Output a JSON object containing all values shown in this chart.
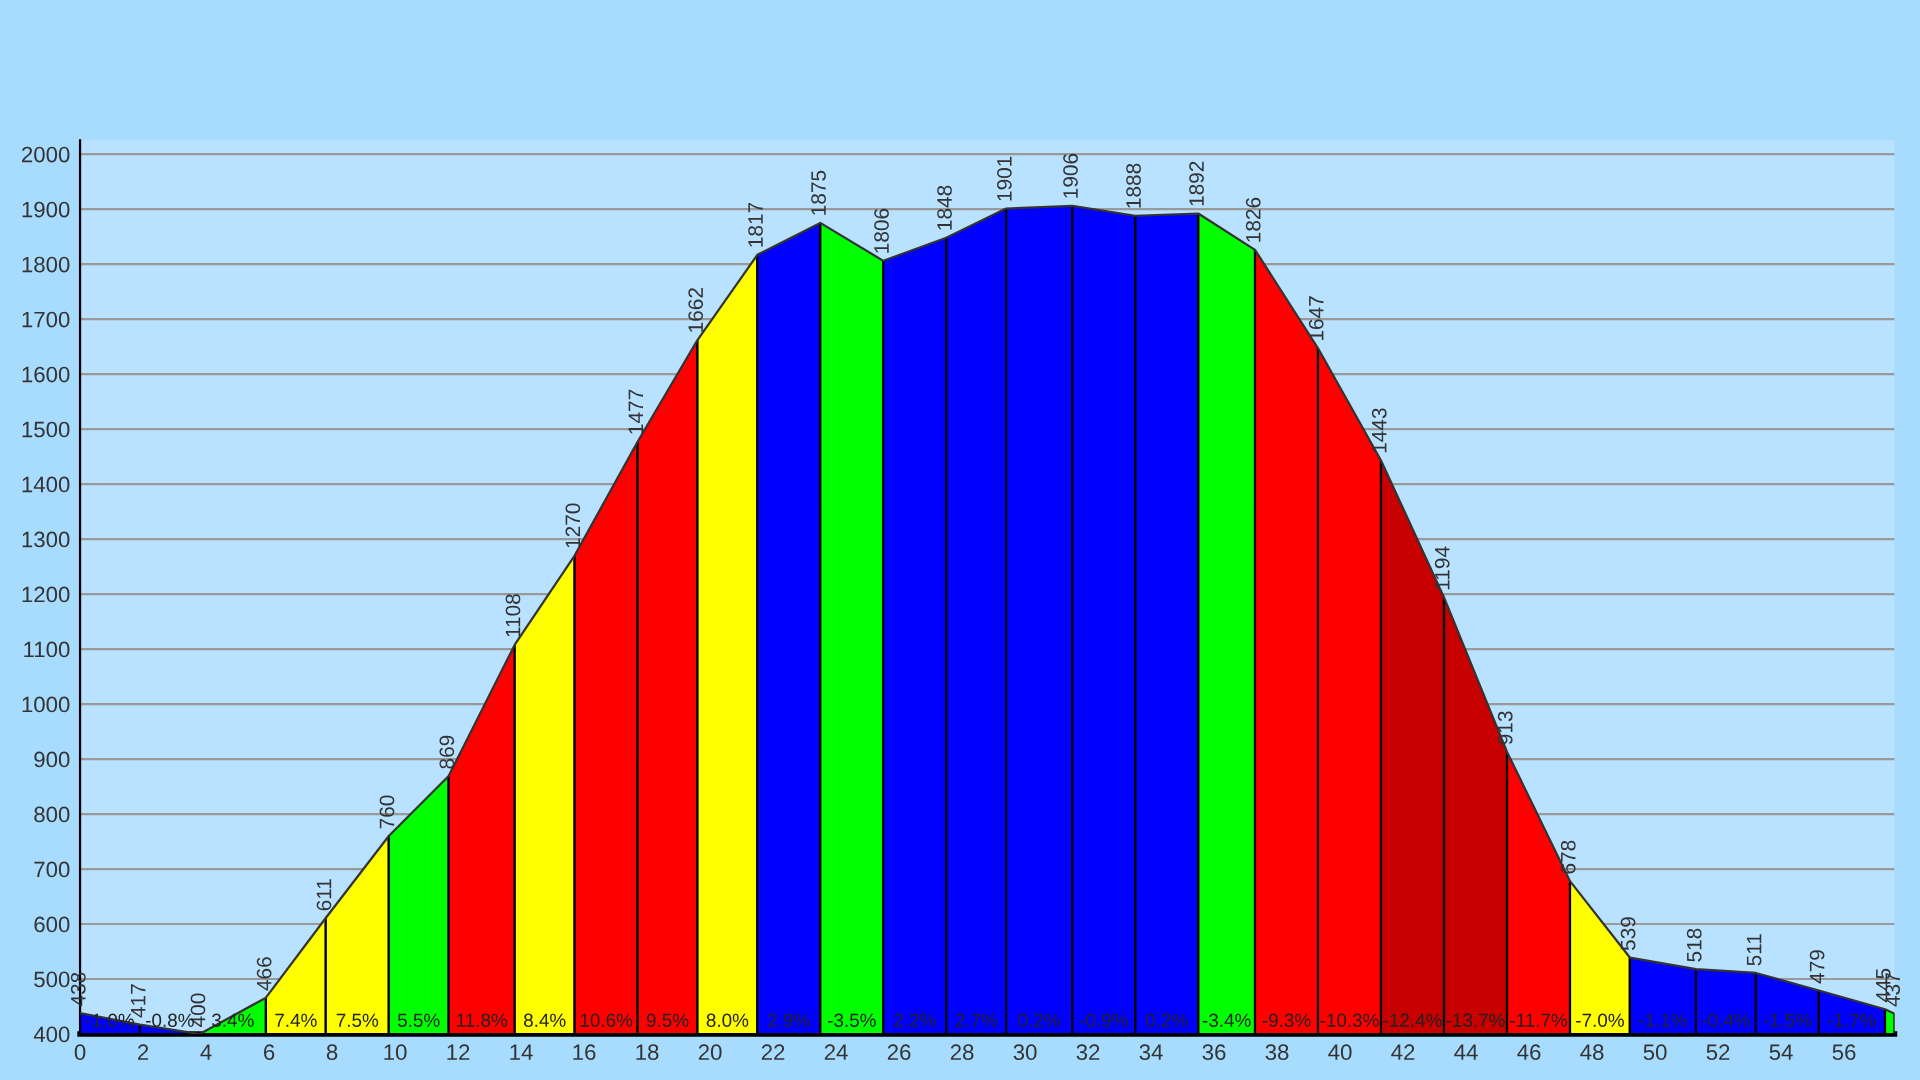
{
  "chart_data": {
    "type": "area",
    "x": [
      0,
      1.9,
      3.8,
      5.9,
      7.8,
      9.8,
      11.7,
      13.8,
      15.7,
      17.7,
      19.6,
      21.5,
      23.5,
      25.5,
      27.5,
      29.4,
      31.5,
      33.5,
      35.5,
      37.3,
      39.3,
      41.3,
      43.3,
      45.3,
      47.3,
      49.2,
      51.3,
      53.2,
      55.2,
      57.3,
      57.6
    ],
    "values": [
      438,
      417,
      400,
      466,
      611,
      760,
      869,
      1108,
      1270,
      1477,
      1662,
      1817,
      1875,
      1806,
      1848,
      1901,
      1906,
      1888,
      1892,
      1826,
      1647,
      1443,
      1194,
      913,
      678,
      539,
      518,
      511,
      479,
      445,
      437
    ],
    "color": "#0000ff",
    "data_labels": true,
    "bands": [
      {
        "axis": "x",
        "from": 0,
        "to": 1.9,
        "color": "#0000ff"
      },
      {
        "axis": "x",
        "from": 1.9,
        "to": 3.8,
        "color": "#0000ff"
      },
      {
        "axis": "x",
        "from": 3.8,
        "to": 5.9,
        "color": "#00ff00"
      },
      {
        "axis": "x",
        "from": 5.9,
        "to": 7.8,
        "color": "#ffff00"
      },
      {
        "axis": "x",
        "from": 7.8,
        "to": 9.8,
        "color": "#ffff00"
      },
      {
        "axis": "x",
        "from": 9.8,
        "to": 11.7,
        "color": "#00ff00"
      },
      {
        "axis": "x",
        "from": 11.7,
        "to": 13.8,
        "color": "#ff0000"
      },
      {
        "axis": "x",
        "from": 13.8,
        "to": 15.7,
        "color": "#ffff00"
      },
      {
        "axis": "x",
        "from": 15.7,
        "to": 17.7,
        "color": "#ff0000"
      },
      {
        "axis": "x",
        "from": 17.7,
        "to": 19.6,
        "color": "#ff0000"
      },
      {
        "axis": "x",
        "from": 19.6,
        "to": 21.5,
        "color": "#ffff00"
      },
      {
        "axis": "x",
        "from": 21.5,
        "to": 23.5,
        "color": "#0000ff"
      },
      {
        "axis": "x",
        "from": 23.5,
        "to": 25.5,
        "color": "#00ff00"
      },
      {
        "axis": "x",
        "from": 25.5,
        "to": 27.5,
        "color": "#0000ff"
      },
      {
        "axis": "x",
        "from": 27.5,
        "to": 29.4,
        "color": "#0000ff"
      },
      {
        "axis": "x",
        "from": 29.4,
        "to": 31.5,
        "color": "#0000ff"
      },
      {
        "axis": "x",
        "from": 31.5,
        "to": 33.5,
        "color": "#0000ff"
      },
      {
        "axis": "x",
        "from": 33.5,
        "to": 35.5,
        "color": "#0000ff"
      },
      {
        "axis": "x",
        "from": 35.5,
        "to": 37.3,
        "color": "#00ff00"
      },
      {
        "axis": "x",
        "from": 37.3,
        "to": 39.3,
        "color": "#ff0000"
      },
      {
        "axis": "x",
        "from": 39.3,
        "to": 41.3,
        "color": "#ff0000"
      },
      {
        "axis": "x",
        "from": 41.3,
        "to": 43.3,
        "color": "#c80000"
      },
      {
        "axis": "x",
        "from": 43.3,
        "to": 45.3,
        "color": "#c80000"
      },
      {
        "axis": "x",
        "from": 45.3,
        "to": 47.3,
        "color": "#ff0000"
      },
      {
        "axis": "x",
        "from": 47.3,
        "to": 49.2,
        "color": "#ffff00"
      },
      {
        "axis": "x",
        "from": 49.2,
        "to": 51.3,
        "color": "#0000ff"
      },
      {
        "axis": "x",
        "from": 51.3,
        "to": 53.2,
        "color": "#0000ff"
      },
      {
        "axis": "x",
        "from": 53.2,
        "to": 55.2,
        "color": "#0000ff"
      },
      {
        "axis": "x",
        "from": 55.2,
        "to": 57.3,
        "color": "#0000ff"
      },
      {
        "axis": "x",
        "from": 57.3,
        "to": 57.6,
        "color": "#00ff00"
      }
    ],
    "annotations": [
      "-1.0%",
      "-0.8%",
      "3.4%",
      "7.4%",
      "7.5%",
      "5.5%",
      "11.8%",
      "8.4%",
      "10.6%",
      "9.5%",
      "8.0%",
      "2.9%",
      "-3.5%",
      "2.2%",
      "2.7%",
      "0.2%",
      "-0.9%",
      "0.2%",
      "-3.4%",
      "-9.3%",
      "-10.3%",
      "-12.4%",
      "-13.7%",
      "-11.7%",
      "-7.0%",
      "-1.1%",
      "-0.4%",
      "-1.5%",
      "-1.7%"
    ],
    "xlim": [
      0,
      57.6
    ],
    "ylim": [
      400,
      2025
    ],
    "xticks": [
      0,
      2,
      4,
      6,
      8,
      10,
      12,
      14,
      16,
      18,
      20,
      22,
      24,
      26,
      28,
      30,
      32,
      34,
      36,
      38,
      40,
      42,
      44,
      46,
      48,
      50,
      52,
      54,
      56
    ],
    "yticks": [
      400,
      500,
      600,
      700,
      800,
      900,
      1000,
      1100,
      1200,
      1300,
      1400,
      1500,
      1600,
      1700,
      1800,
      1900,
      2000
    ],
    "grid": "y",
    "legend": false
  }
}
